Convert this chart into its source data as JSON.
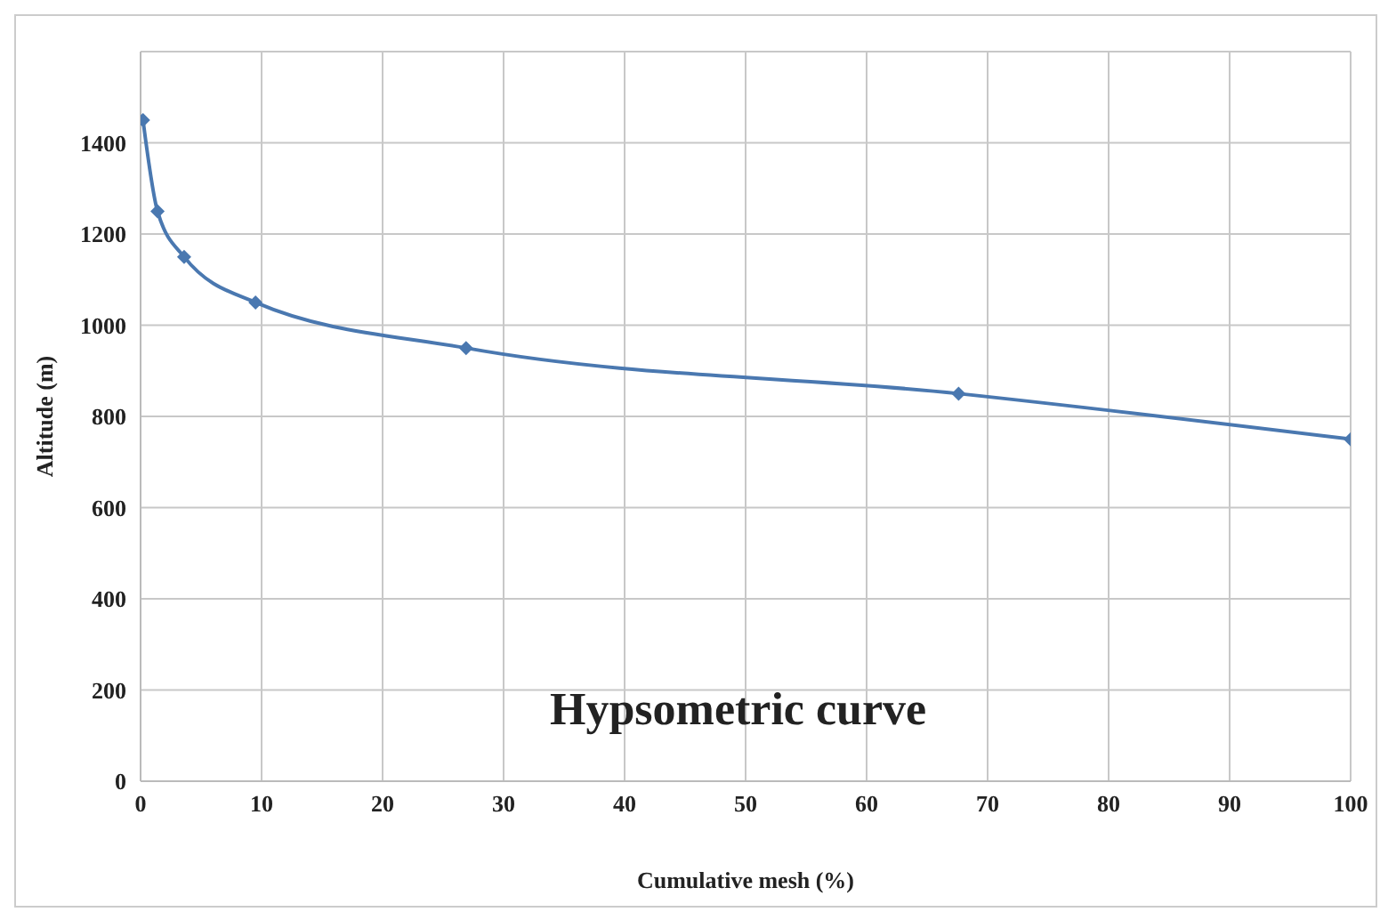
{
  "chart_data": {
    "type": "line",
    "xlabel": "Cumulative mesh (%)",
    "ylabel": "Altitude (m)",
    "annotations": [
      "Hypsometric curve"
    ],
    "x": [
      0.2,
      1.4,
      3.6,
      9.5,
      26.9,
      67.6,
      100
    ],
    "series": [
      {
        "color": "#4a78b0",
        "values": [
          1450,
          1250,
          1150,
          1050,
          950,
          850,
          750
        ]
      }
    ],
    "xlim": [
      0,
      100
    ],
    "xticks": [
      0,
      10,
      20,
      30,
      40,
      50,
      60,
      70,
      80,
      90,
      100
    ],
    "ylim": [
      0,
      1600
    ],
    "yticks": [
      0,
      200,
      400,
      600,
      800,
      1000,
      1200,
      1400
    ],
    "grid": true,
    "marker": "diamond",
    "line_style": "solid"
  }
}
